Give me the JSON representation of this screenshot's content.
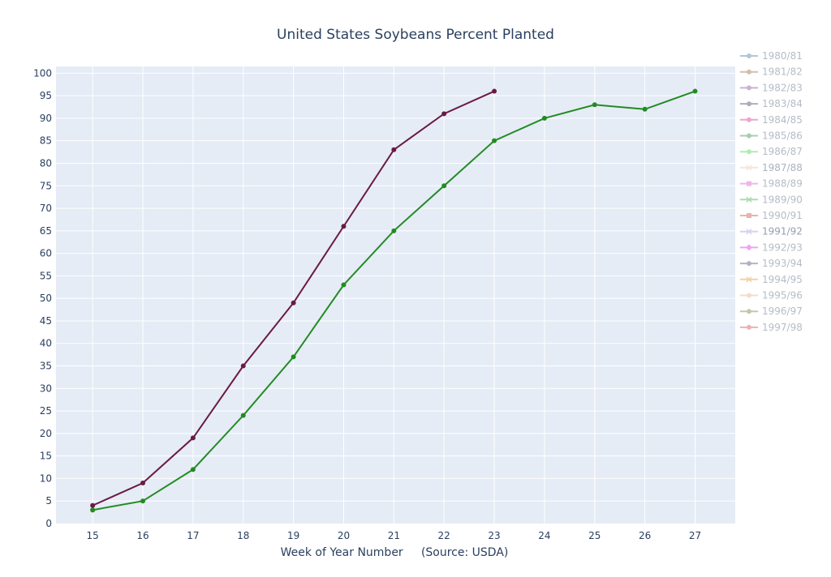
{
  "chart_data": {
    "type": "line",
    "title": "United States Soybeans Percent Planted",
    "xlabel": "Week of Year Number     (Source: USDA)",
    "ylabel": "",
    "x_ticks": [
      15,
      16,
      17,
      18,
      19,
      20,
      21,
      22,
      23,
      24,
      25,
      26,
      27
    ],
    "y_ticks": [
      0,
      5,
      10,
      15,
      20,
      25,
      30,
      35,
      40,
      45,
      50,
      55,
      60,
      65,
      70,
      75,
      80,
      85,
      90,
      95,
      100
    ],
    "xlim": [
      14.27,
      27.8
    ],
    "ylim": [
      0,
      101.5
    ],
    "grid": true,
    "legend_position": "right",
    "colors": {
      "plot_bg": "#e5ecf6",
      "grid": "#ffffff",
      "text": "#2a3f5f"
    },
    "series": [
      {
        "name": "1980/81",
        "color": "#1f5f8b",
        "opacity": 0.3,
        "marker": "circle",
        "x": [],
        "y": []
      },
      {
        "name": "1981/82",
        "color": "#7a4a12",
        "opacity": 0.3,
        "marker": "circle",
        "x": [],
        "y": []
      },
      {
        "name": "1982/83",
        "color": "#5b2a86",
        "opacity": 0.3,
        "marker": "circle",
        "x": [],
        "y": []
      },
      {
        "name": "1983/84",
        "color": "#1b1b3a",
        "opacity": 0.3,
        "marker": "circle",
        "x": [],
        "y": []
      },
      {
        "name": "1984/85",
        "color": "#d1006f",
        "opacity": 0.3,
        "marker": "circle",
        "x": [],
        "y": []
      },
      {
        "name": "1985/86",
        "color": "#0b6e2f",
        "opacity": 0.3,
        "marker": "circle",
        "x": [],
        "y": []
      },
      {
        "name": "1986/87",
        "color": "#22cc22",
        "opacity": 0.3,
        "marker": "circle",
        "x": [],
        "y": []
      },
      {
        "name": "1987/88",
        "color": "#e8c39e",
        "opacity": 0.4,
        "marker": "x",
        "x": [],
        "y": []
      },
      {
        "name": "1988/89",
        "color": "#cc33cc",
        "opacity": 0.3,
        "marker": "square",
        "x": [],
        "y": []
      },
      {
        "name": "1989/90",
        "color": "#1a9a1a",
        "opacity": 0.3,
        "marker": "x",
        "x": [],
        "y": []
      },
      {
        "name": "1990/91",
        "color": "#b8281e",
        "opacity": 0.3,
        "marker": "square",
        "x": [],
        "y": []
      },
      {
        "name": "1991/92",
        "color": "#b8a0e8",
        "opacity": 0.5,
        "marker": "x",
        "x": [],
        "y": []
      },
      {
        "name": "1992/93",
        "color": "#cc00cc",
        "opacity": 0.3,
        "marker": "diamond",
        "x": [],
        "y": []
      },
      {
        "name": "1993/94",
        "color": "#2a2a4a",
        "opacity": 0.3,
        "marker": "circle",
        "x": [],
        "y": []
      },
      {
        "name": "1994/95",
        "color": "#e07a00",
        "opacity": 0.3,
        "marker": "x",
        "x": [],
        "y": []
      },
      {
        "name": "1995/96",
        "color": "#e89a70",
        "opacity": 0.3,
        "marker": "circle",
        "x": [],
        "y": []
      },
      {
        "name": "1996/97",
        "color": "#4a6a10",
        "opacity": 0.3,
        "marker": "circle",
        "x": [
          15
        ],
        "y": [
          3
        ]
      },
      {
        "name": "1997/98",
        "color": "#cc2222",
        "opacity": 0.3,
        "marker": "circle",
        "x": [
          15
        ],
        "y": [
          3
        ]
      },
      {
        "name": "",
        "color": "#228b22",
        "opacity": 1,
        "marker": "circle",
        "x": [
          15,
          16,
          17,
          18,
          19,
          20,
          21,
          22,
          23,
          24,
          25,
          26,
          27
        ],
        "y": [
          3,
          5,
          12,
          24,
          37,
          53,
          65,
          75,
          85,
          90,
          93,
          92,
          96
        ]
      },
      {
        "name": "",
        "color": "#6b1a45",
        "opacity": 1,
        "marker": "circle",
        "x": [
          15,
          16,
          17,
          18,
          19,
          20,
          21,
          22,
          23
        ],
        "y": [
          4,
          9,
          19,
          35,
          49,
          66,
          83,
          91,
          96
        ]
      }
    ]
  }
}
